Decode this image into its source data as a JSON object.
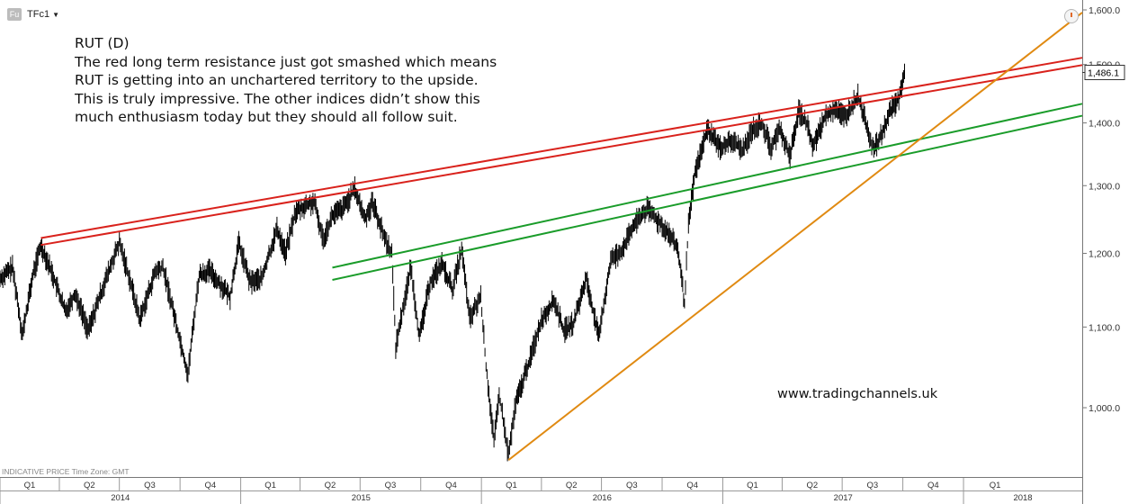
{
  "symbol": {
    "badge": "Fu",
    "ticker": "TFc1",
    "dropdown_icon": "caret-down-icon"
  },
  "annotation": {
    "title": "RUT (D)",
    "lines": [
      "The red long term resistance just got smashed which means",
      "RUT is getting into an unchartered territory to the upside.",
      "This is truly impressive. The other indices didn’t show this",
      "much enthusiasm today but they should all follow suit."
    ]
  },
  "watermark": "www.tradingchannels.uk",
  "footer_note": "INDICATIVE PRICE   Time Zone: GMT",
  "chart_data": {
    "type": "line",
    "title": "",
    "y_scale": "log",
    "ylim": [
      920,
      1610
    ],
    "price_label": "1,486.1",
    "y_ticks": [
      {
        "v": 1000,
        "label": "1,000.0"
      },
      {
        "v": 1100,
        "label": "1,100.0"
      },
      {
        "v": 1200,
        "label": "1,200.0"
      },
      {
        "v": 1300,
        "label": "1,300.0"
      },
      {
        "v": 1400,
        "label": "1,400.0"
      },
      {
        "v": 1500,
        "label": "1,500.0"
      },
      {
        "v": 1600,
        "label": "1,600.0"
      }
    ],
    "x_range": [
      "2014-01-01",
      "2018-06-30"
    ],
    "quarters": [
      {
        "label": "Q1",
        "start": "2014-01-01"
      },
      {
        "label": "Q2",
        "start": "2014-04-01"
      },
      {
        "label": "Q3",
        "start": "2014-07-01"
      },
      {
        "label": "Q4",
        "start": "2014-10-01"
      },
      {
        "label": "Q1",
        "start": "2015-01-01"
      },
      {
        "label": "Q2",
        "start": "2015-04-01"
      },
      {
        "label": "Q3",
        "start": "2015-07-01"
      },
      {
        "label": "Q4",
        "start": "2015-10-01"
      },
      {
        "label": "Q1",
        "start": "2016-01-01"
      },
      {
        "label": "Q2",
        "start": "2016-04-01"
      },
      {
        "label": "Q3",
        "start": "2016-07-01"
      },
      {
        "label": "Q4",
        "start": "2016-10-01"
      },
      {
        "label": "Q1",
        "start": "2017-01-01"
      },
      {
        "label": "Q2",
        "start": "2017-04-01"
      },
      {
        "label": "Q3",
        "start": "2017-07-01"
      },
      {
        "label": "Q4",
        "start": "2017-10-01"
      },
      {
        "label": "Q1",
        "start": "2018-01-01"
      }
    ],
    "years": [
      {
        "label": "2014",
        "start": "2014-01-01"
      },
      {
        "label": "2015",
        "start": "2015-01-01"
      },
      {
        "label": "2016",
        "start": "2016-01-01"
      },
      {
        "label": "2017",
        "start": "2017-01-01"
      },
      {
        "label": "2018",
        "start": "2018-01-01"
      }
    ],
    "price_series": [
      [
        "2014-01-01",
        1165
      ],
      [
        "2014-01-20",
        1180
      ],
      [
        "2014-02-04",
        1090
      ],
      [
        "2014-02-20",
        1170
      ],
      [
        "2014-03-04",
        1212
      ],
      [
        "2014-03-20",
        1175
      ],
      [
        "2014-04-10",
        1120
      ],
      [
        "2014-04-25",
        1145
      ],
      [
        "2014-05-15",
        1095
      ],
      [
        "2014-06-05",
        1150
      ],
      [
        "2014-07-01",
        1215
      ],
      [
        "2014-07-15",
        1170
      ],
      [
        "2014-08-01",
        1110
      ],
      [
        "2014-08-25",
        1175
      ],
      [
        "2014-09-05",
        1180
      ],
      [
        "2014-09-25",
        1105
      ],
      [
        "2014-10-13",
        1040
      ],
      [
        "2014-10-30",
        1170
      ],
      [
        "2014-11-15",
        1175
      ],
      [
        "2014-12-16",
        1140
      ],
      [
        "2014-12-29",
        1215
      ],
      [
        "2015-01-15",
        1160
      ],
      [
        "2015-02-02",
        1165
      ],
      [
        "2015-02-25",
        1235
      ],
      [
        "2015-03-10",
        1200
      ],
      [
        "2015-03-25",
        1260
      ],
      [
        "2015-04-10",
        1270
      ],
      [
        "2015-04-22",
        1275
      ],
      [
        "2015-05-06",
        1220
      ],
      [
        "2015-05-20",
        1255
      ],
      [
        "2015-06-05",
        1265
      ],
      [
        "2015-06-23",
        1295
      ],
      [
        "2015-07-08",
        1250
      ],
      [
        "2015-07-20",
        1275
      ],
      [
        "2015-08-04",
        1230
      ],
      [
        "2015-08-18",
        1200
      ],
      [
        "2015-08-24",
        1075
      ],
      [
        "2015-09-16",
        1180
      ],
      [
        "2015-09-29",
        1085
      ],
      [
        "2015-10-15",
        1160
      ],
      [
        "2015-11-02",
        1185
      ],
      [
        "2015-11-18",
        1150
      ],
      [
        "2015-12-02",
        1205
      ],
      [
        "2015-12-14",
        1110
      ],
      [
        "2015-12-31",
        1140
      ],
      [
        "2016-01-08",
        1050
      ],
      [
        "2016-01-20",
        960
      ],
      [
        "2016-01-28",
        1015
      ],
      [
        "2016-02-11",
        945
      ],
      [
        "2016-02-22",
        1005
      ],
      [
        "2016-03-15",
        1060
      ],
      [
        "2016-04-01",
        1110
      ],
      [
        "2016-04-20",
        1135
      ],
      [
        "2016-05-05",
        1095
      ],
      [
        "2016-05-20",
        1105
      ],
      [
        "2016-06-08",
        1165
      ],
      [
        "2016-06-27",
        1085
      ],
      [
        "2016-07-15",
        1190
      ],
      [
        "2016-08-01",
        1205
      ],
      [
        "2016-08-22",
        1245
      ],
      [
        "2016-09-08",
        1265
      ],
      [
        "2016-09-22",
        1250
      ],
      [
        "2016-10-10",
        1230
      ],
      [
        "2016-10-25",
        1205
      ],
      [
        "2016-11-04",
        1130
      ],
      [
        "2016-11-10",
        1240
      ],
      [
        "2016-11-20",
        1320
      ],
      [
        "2016-12-09",
        1390
      ],
      [
        "2016-12-28",
        1360
      ],
      [
        "2017-01-15",
        1370
      ],
      [
        "2017-02-01",
        1355
      ],
      [
        "2017-02-15",
        1390
      ],
      [
        "2017-03-01",
        1400
      ],
      [
        "2017-03-15",
        1360
      ],
      [
        "2017-03-29",
        1390
      ],
      [
        "2017-04-13",
        1345
      ],
      [
        "2017-04-26",
        1420
      ],
      [
        "2017-05-10",
        1395
      ],
      [
        "2017-05-17",
        1360
      ],
      [
        "2017-06-05",
        1410
      ],
      [
        "2017-06-20",
        1425
      ],
      [
        "2017-07-05",
        1410
      ],
      [
        "2017-07-25",
        1445
      ],
      [
        "2017-08-10",
        1385
      ],
      [
        "2017-08-18",
        1355
      ],
      [
        "2017-08-30",
        1380
      ],
      [
        "2017-09-12",
        1420
      ],
      [
        "2017-09-25",
        1440
      ],
      [
        "2017-10-05",
        1490
      ]
    ],
    "trendlines": [
      {
        "color": "#d9221c",
        "p1": [
          "2014-03-04",
          1212
        ],
        "p2": [
          "2018-06-30",
          1499
        ]
      },
      {
        "color": "#d9221c",
        "p1": [
          "2014-03-04",
          1222
        ],
        "p2": [
          "2018-06-30",
          1512
        ]
      },
      {
        "color": "#1a9c2a",
        "p1": [
          "2015-05-20",
          1180
        ],
        "p2": [
          "2018-06-30",
          1432
        ]
      },
      {
        "color": "#1a9c2a",
        "p1": [
          "2015-05-20",
          1163
        ],
        "p2": [
          "2018-06-30",
          1412
        ]
      },
      {
        "color": "#e08a12",
        "p1": [
          "2016-02-11",
          940
        ],
        "p2": [
          "2018-06-30",
          1595
        ]
      }
    ]
  }
}
